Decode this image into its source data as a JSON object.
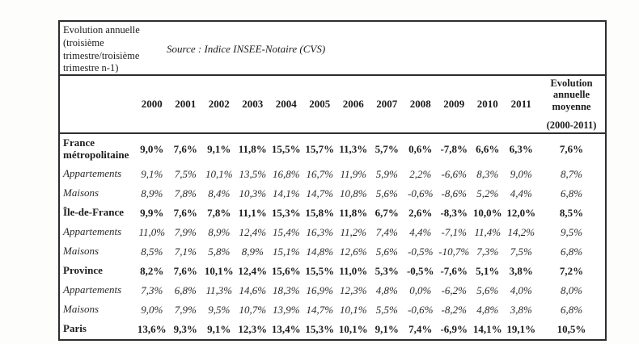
{
  "document": {
    "corner_label": "Evolution annuelle (troisième trimestre/troisième trimestre n-1)",
    "source_note": "Source : Indice INSEE-Notaire (CVS)"
  },
  "table": {
    "year_columns": [
      "2000",
      "2001",
      "2002",
      "2003",
      "2004",
      "2005",
      "2006",
      "2007",
      "2008",
      "2009",
      "2010",
      "2011"
    ],
    "avg_column_header": "Evolution annuelle moyenne",
    "avg_column_subheader": "(2000-2011)",
    "rows": [
      {
        "label": "France métropolitaine",
        "style": "bold",
        "values": [
          "9,0%",
          "7,6%",
          "9,1%",
          "11,8%",
          "15,5%",
          "15,7%",
          "11,3%",
          "5,7%",
          "0,6%",
          "-7,8%",
          "6,6%",
          "6,3%"
        ],
        "avg": "7,6%"
      },
      {
        "label": "Appartements",
        "style": "italic",
        "values": [
          "9,1%",
          "7,5%",
          "10,1%",
          "13,5%",
          "16,8%",
          "16,7%",
          "11,9%",
          "5,9%",
          "2,2%",
          "-6,6%",
          "8,3%",
          "9,0%"
        ],
        "avg": "8,7%"
      },
      {
        "label": "Maisons",
        "style": "italic",
        "values": [
          "8,9%",
          "7,8%",
          "8,4%",
          "10,3%",
          "14,1%",
          "14,7%",
          "10,8%",
          "5,6%",
          "-0,6%",
          "-8,6%",
          "5,2%",
          "4,4%"
        ],
        "avg": "6,8%"
      },
      {
        "label": "Île-de-France",
        "style": "bold",
        "values": [
          "9,9%",
          "7,6%",
          "7,8%",
          "11,1%",
          "15,3%",
          "15,8%",
          "11,8%",
          "6,7%",
          "2,6%",
          "-8,3%",
          "10,0%",
          "12,0%"
        ],
        "avg": "8,5%"
      },
      {
        "label": "Appartements",
        "style": "italic",
        "values": [
          "11,0%",
          "7,9%",
          "8,9%",
          "12,4%",
          "15,4%",
          "16,3%",
          "11,2%",
          "7,4%",
          "4,4%",
          "-7,1%",
          "11,4%",
          "14,2%"
        ],
        "avg": "9,5%"
      },
      {
        "label": "Maisons",
        "style": "italic",
        "values": [
          "8,5%",
          "7,1%",
          "5,8%",
          "8,9%",
          "15,1%",
          "14,8%",
          "12,6%",
          "5,6%",
          "-0,5%",
          "-10,7%",
          "7,3%",
          "7,5%"
        ],
        "avg": "6,8%"
      },
      {
        "label": "Province",
        "style": "bold",
        "values": [
          "8,2%",
          "7,6%",
          "10,1%",
          "12,4%",
          "15,6%",
          "15,5%",
          "11,0%",
          "5,3%",
          "-0,5%",
          "-7,6%",
          "5,1%",
          "3,8%"
        ],
        "avg": "7,2%"
      },
      {
        "label": "Appartements",
        "style": "italic",
        "values": [
          "7,3%",
          "6,8%",
          "11,3%",
          "14,6%",
          "18,3%",
          "16,9%",
          "12,3%",
          "4,8%",
          "0,0%",
          "-6,2%",
          "5,6%",
          "4,0%"
        ],
        "avg": "8,0%"
      },
      {
        "label": "Maisons",
        "style": "italic",
        "values": [
          "9,0%",
          "7,9%",
          "9,5%",
          "10,7%",
          "13,9%",
          "14,7%",
          "10,1%",
          "5,5%",
          "-0,6%",
          "-8,2%",
          "4,8%",
          "3,8%"
        ],
        "avg": "6,8%"
      },
      {
        "label": "Paris",
        "style": "bold",
        "values": [
          "13,6%",
          "9,3%",
          "9,1%",
          "12,3%",
          "13,4%",
          "15,3%",
          "10,1%",
          "9,1%",
          "7,4%",
          "-6,9%",
          "14,1%",
          "19,1%"
        ],
        "avg": "10,5%"
      }
    ]
  }
}
